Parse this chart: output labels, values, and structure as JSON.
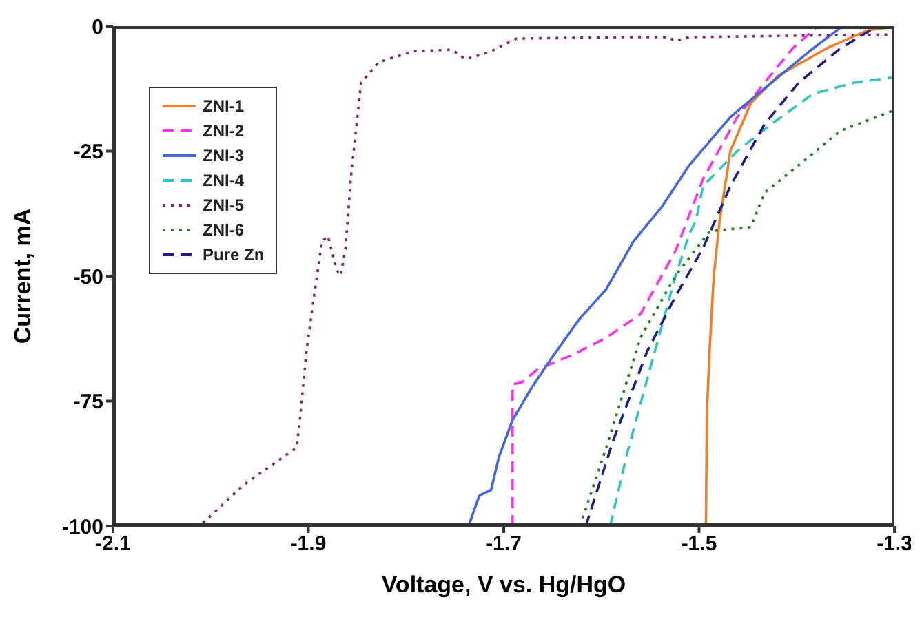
{
  "chart_data": {
    "type": "line",
    "xlabel": "Voltage, V vs. Hg/HgO",
    "ylabel": "Current, mA",
    "xlim": [
      -2.1,
      -1.3
    ],
    "xticks": [
      -2.1,
      -1.9,
      -1.7,
      -1.5,
      -1.3
    ],
    "ylim": [
      -100,
      0
    ],
    "yticks": [
      -100,
      -75,
      -50,
      -25,
      0
    ],
    "grid": false,
    "legend": "top left",
    "marker": "none",
    "series": [
      {
        "name": "ZNI-1",
        "color": "#f07f2a",
        "line_style": "solid",
        "x": [
          -1.493,
          -1.492,
          -1.489,
          -1.485,
          -1.479,
          -1.468,
          -1.447,
          -1.419,
          -1.369,
          -1.327,
          -1.306
        ],
        "values": [
          -100,
          -77,
          -64,
          -50,
          -39,
          -25,
          -15.4,
          -9.9,
          -4.4,
          -0.8,
          -0.3
        ]
      },
      {
        "name": "ZNI-2",
        "color": "#ff33e6",
        "line_style": "dashed",
        "x": [
          -1.691,
          -1.691,
          -1.682,
          -1.665,
          -1.63,
          -1.595,
          -1.56,
          -1.524,
          -1.496,
          -1.461,
          -1.433,
          -1.404,
          -1.38
        ],
        "values": [
          -100,
          -71.6,
          -71.3,
          -68.6,
          -65.8,
          -62.3,
          -57.6,
          -44.9,
          -30.6,
          -18.2,
          -11.3,
          -4.4,
          -0.3
        ]
      },
      {
        "name": "ZNI-3",
        "color": "#4466dd",
        "line_style": "solid",
        "x": [
          -1.736,
          -1.725,
          -1.713,
          -1.705,
          -1.691,
          -1.672,
          -1.651,
          -1.623,
          -1.595,
          -1.567,
          -1.538,
          -1.51,
          -1.468,
          -1.426,
          -1.383,
          -1.355
        ],
        "values": [
          -100,
          -93.9,
          -92.8,
          -86.2,
          -78.8,
          -72.5,
          -66.4,
          -58.7,
          -52.6,
          -43,
          -36.1,
          -27.8,
          -18.2,
          -11.3,
          -4.4,
          -0.3
        ]
      },
      {
        "name": "ZNI-4",
        "color": "#33c4c4",
        "line_style": "dashed",
        "x": [
          -1.591,
          -1.574,
          -1.553,
          -1.524,
          -1.51,
          -1.503,
          -1.496,
          -1.461,
          -1.426,
          -1.383,
          -1.341,
          -1.3
        ],
        "values": [
          -100,
          -85.7,
          -70.5,
          -49.9,
          -41.6,
          -38.8,
          -32,
          -25,
          -19.6,
          -13.5,
          -11.3,
          -10.2
        ]
      },
      {
        "name": "ZNI-5",
        "color": "#80207f",
        "line_style": "dotted",
        "x": [
          -2.008,
          -1.966,
          -1.912,
          -1.908,
          -1.902,
          -1.894,
          -1.886,
          -1.88,
          -1.871,
          -1.867,
          -1.862,
          -1.856,
          -1.846,
          -1.828,
          -1.792,
          -1.753,
          -1.739,
          -1.715,
          -1.687,
          -1.581,
          -1.531,
          -1.525,
          -1.51,
          -1.313,
          -1.3
        ],
        "values": [
          -99.4,
          -91.7,
          -84.3,
          -77.4,
          -65,
          -53.7,
          -43,
          -42,
          -48.8,
          -49.9,
          -44.4,
          -29.2,
          -11.3,
          -7.2,
          -5,
          -4.7,
          -6.6,
          -5.2,
          -2.5,
          -2.2,
          -2.2,
          -3,
          -2.2,
          -1.7,
          -1.7
        ]
      },
      {
        "name": "ZNI-6",
        "color": "#207f20",
        "line_style": "dotted",
        "x": [
          -1.622,
          -1.595,
          -1.56,
          -1.524,
          -1.489,
          -1.447,
          -1.433,
          -1.398,
          -1.355,
          -1.3
        ],
        "values": [
          -100,
          -84.3,
          -62.3,
          -49.9,
          -41,
          -40.2,
          -33.3,
          -27.8,
          -20.9,
          -16.8
        ]
      },
      {
        "name": "Pure Zn",
        "color": "#1f1f80",
        "line_style": "dashed",
        "x": [
          -1.616,
          -1.588,
          -1.553,
          -1.524,
          -1.496,
          -1.468,
          -1.433,
          -1.398,
          -1.355,
          -1.32
        ],
        "values": [
          -100,
          -82.9,
          -65,
          -54,
          -44.4,
          -32,
          -19.6,
          -11.3,
          -4.4,
          -0.3
        ]
      }
    ]
  }
}
